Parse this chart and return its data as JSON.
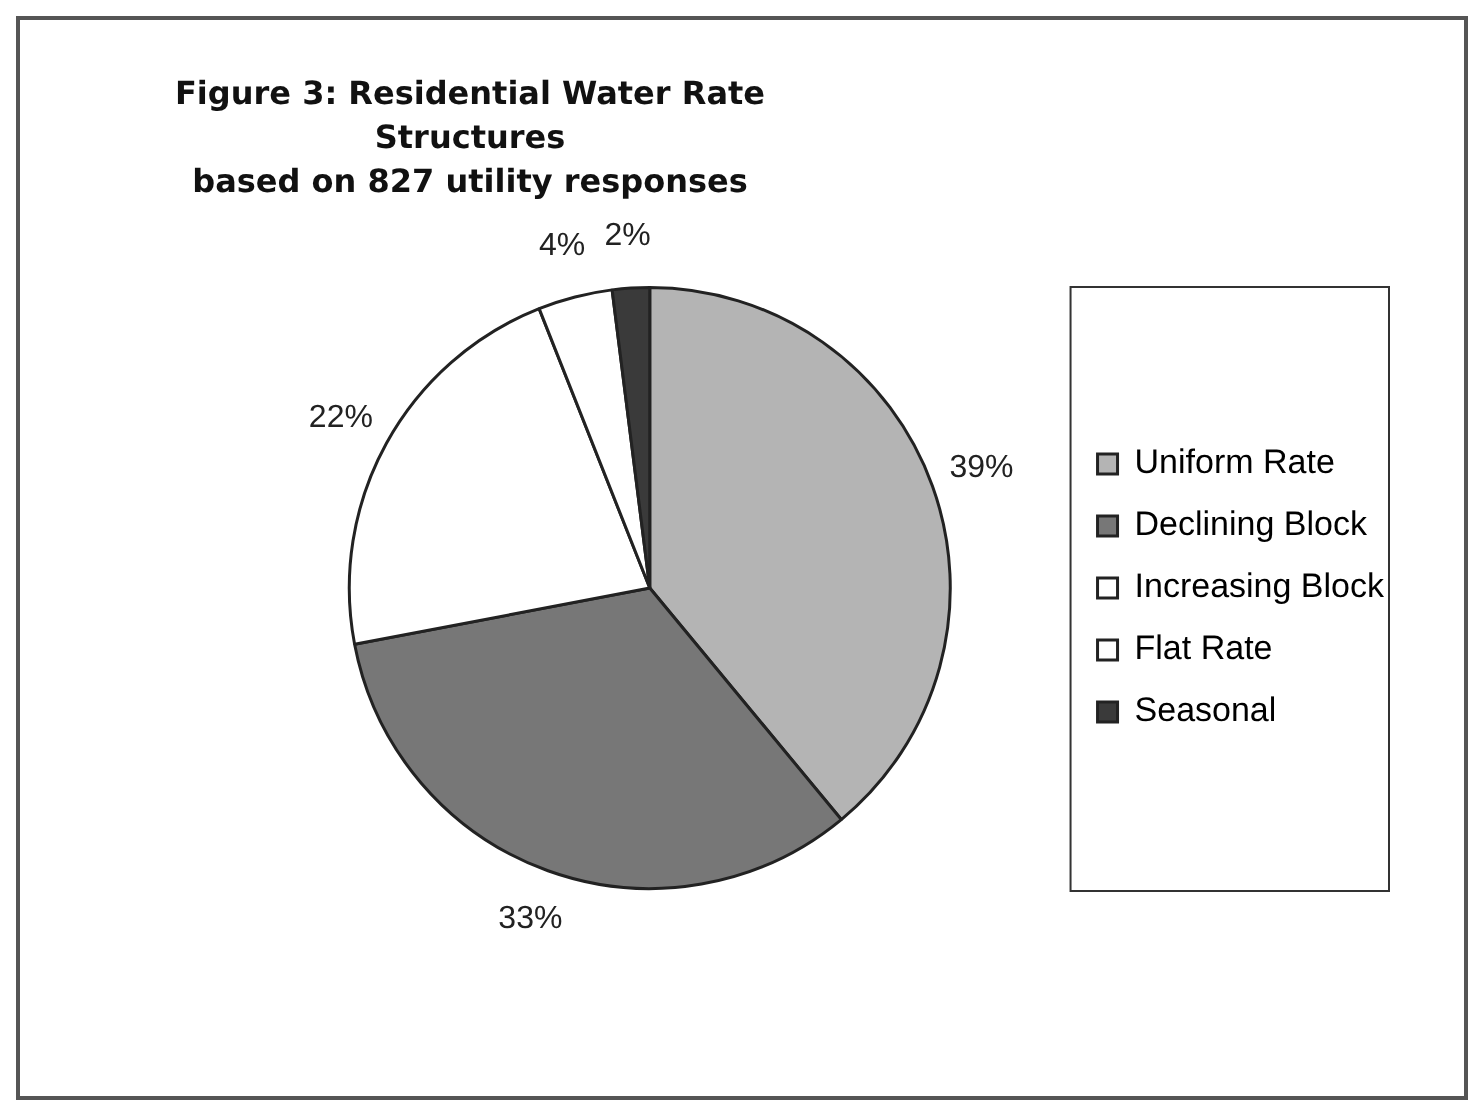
{
  "chart_data": {
    "type": "pie",
    "title": "Figure 3: Residential Water Rate Structures",
    "subtitle": "based on 827 utility responses",
    "categories": [
      "Uniform Rate",
      "Declining Block",
      "Increasing Block",
      "Flat Rate",
      "Seasonal"
    ],
    "values": [
      39,
      33,
      22,
      4,
      2
    ],
    "colors": [
      "#b4b4b4",
      "#777777",
      "#ffffff",
      "#ffffff",
      "#3a3a3a"
    ],
    "value_labels": [
      "39%",
      "33%",
      "22%",
      "4%",
      "2%"
    ],
    "legend": "right"
  }
}
